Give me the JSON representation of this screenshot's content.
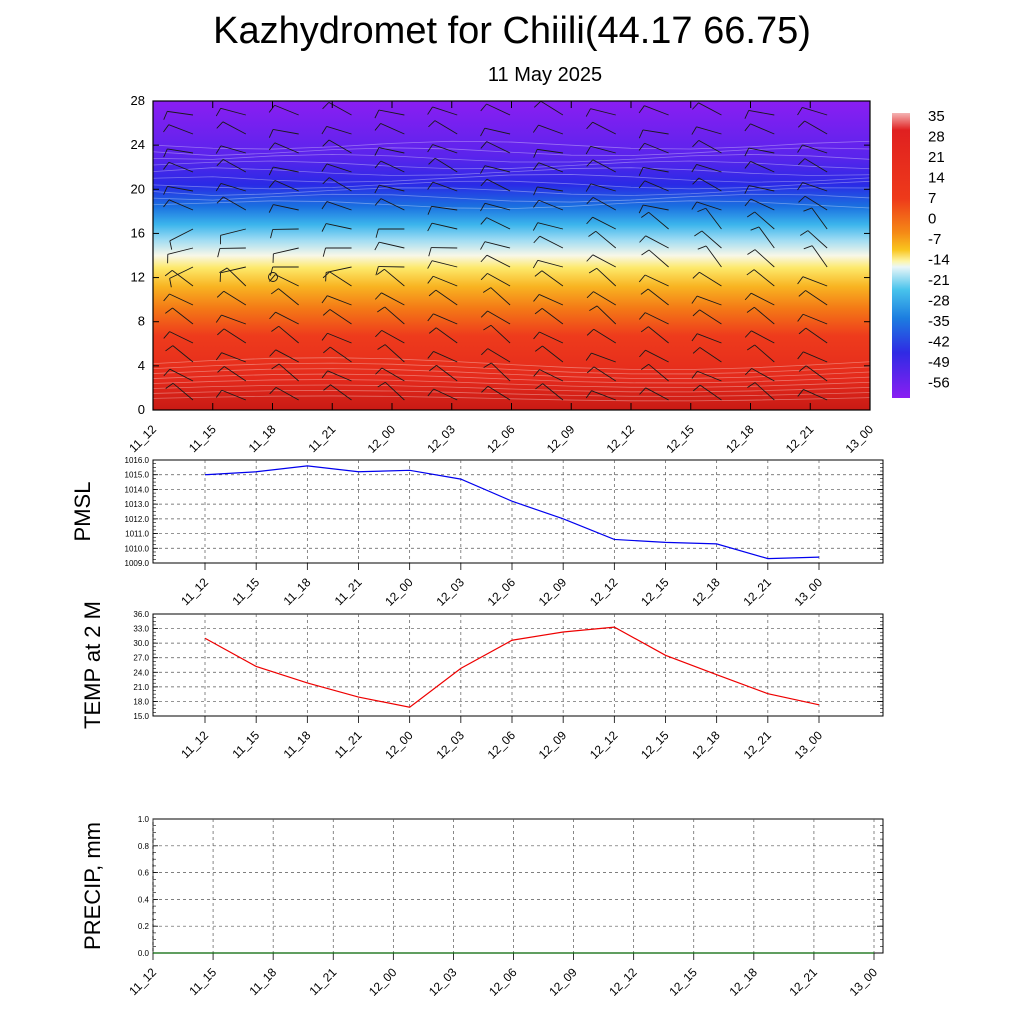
{
  "title": "Kazhydromet for Chiili(44.17 66.75)",
  "subtitle": "11 May 2025",
  "time_labels": [
    "11_12",
    "11_15",
    "11_18",
    "11_21",
    "12_00",
    "12_03",
    "12_06",
    "12_09",
    "12_12",
    "12_15",
    "12_18",
    "12_21",
    "13_00"
  ],
  "chart_data": [
    {
      "type": "heatmap",
      "title": "Kazhydromet for Chiili(44.17 66.75)",
      "subtitle": "11 May 2025",
      "x": [
        "11_12",
        "11_15",
        "11_18",
        "11_21",
        "12_00",
        "12_03",
        "12_06",
        "12_09",
        "12_12",
        "12_15",
        "12_18",
        "12_21",
        "13_00"
      ],
      "yticks": [
        "0",
        "4",
        "8",
        "12",
        "16",
        "20",
        "24",
        "28"
      ],
      "ylim": [
        0,
        28
      ],
      "colorbar_labels": [
        "35",
        "28",
        "21",
        "14",
        "7",
        "0",
        "-7",
        "-14",
        "-21",
        "-28",
        "-35",
        "-42",
        "-49",
        "-56"
      ],
      "color_stops": [
        "#e83a1e",
        "#f28a16",
        "#f7c51e",
        "#fdf5b0",
        "#dff0f8",
        "#48c3ec",
        "#1c7de0",
        "#3b2ee0",
        "#7a1ff0"
      ],
      "grid": false,
      "wind_barbs": true
    },
    {
      "type": "line",
      "ylabel": "PMSL",
      "x": [
        "11_12",
        "11_15",
        "11_18",
        "11_21",
        "12_00",
        "12_03",
        "12_06",
        "12_09",
        "12_12",
        "12_15",
        "12_18",
        "12_21",
        "13_00"
      ],
      "series": [
        {
          "values": [
            1015.0,
            1015.2,
            1015.6,
            1015.2,
            1015.3,
            1014.7,
            1013.2,
            1012.0,
            1010.6,
            1010.4,
            1010.3,
            1009.3,
            1009.4
          ],
          "color": "#0000ee"
        }
      ],
      "ylim": [
        1009.0,
        1016.0
      ],
      "yticks": [
        "1009.0",
        "1010.0",
        "1011.0",
        "1012.0",
        "1013.0",
        "1014.0",
        "1015.0",
        "1016.0"
      ],
      "grid": true
    },
    {
      "type": "line",
      "ylabel": "TEMP at 2 M",
      "x": [
        "11_12",
        "11_15",
        "11_18",
        "11_21",
        "12_00",
        "12_03",
        "12_06",
        "12_09",
        "12_12",
        "12_15",
        "12_18",
        "12_21",
        "13_00"
      ],
      "series": [
        {
          "values": [
            31.0,
            25.2,
            21.8,
            18.9,
            16.8,
            24.8,
            30.6,
            32.3,
            33.3,
            27.5,
            23.5,
            19.6,
            17.3
          ],
          "color": "#ee0000"
        }
      ],
      "ylim": [
        15.0,
        36.0
      ],
      "yticks": [
        "15.0",
        "18.0",
        "21.0",
        "24.0",
        "27.0",
        "30.0",
        "33.0",
        "36.0"
      ],
      "grid": true
    },
    {
      "type": "line",
      "ylabel": "PRECIP, mm",
      "x": [
        "11_12",
        "11_15",
        "11_18",
        "11_21",
        "12_00",
        "12_03",
        "12_06",
        "12_09",
        "12_12",
        "12_15",
        "12_18",
        "12_21",
        "13_00"
      ],
      "series": [
        {
          "values": [
            0,
            0,
            0,
            0,
            0,
            0,
            0,
            0,
            0,
            0,
            0,
            0,
            0
          ],
          "color": "#006400"
        }
      ],
      "ylim": [
        0.0,
        1.0
      ],
      "yticks": [
        "0.0",
        "0.2",
        "0.4",
        "0.6",
        "0.8",
        "1.0"
      ],
      "grid": true
    }
  ]
}
